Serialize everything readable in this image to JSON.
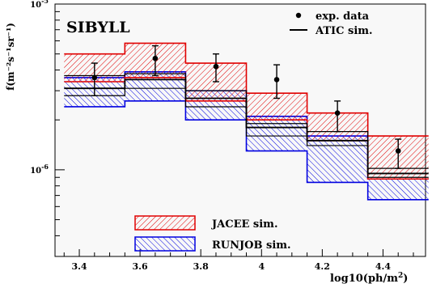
{
  "chart_data": {
    "type": "line",
    "title": "SIBYLL",
    "xlabel_base": "log10(ph/m",
    "xlabel_sup": "2",
    "xlabel_tail": ")",
    "ylabel": "f(m⁻²s⁻¹sr⁻¹)",
    "xlim": [
      3.32,
      4.54
    ],
    "ylim": [
      3e-07,
      1e-05
    ],
    "yscale": "log",
    "grid": false,
    "legend_placement": "top-right",
    "x_ticks": [
      {
        "value": 3.4,
        "label": "3.4"
      },
      {
        "value": 3.6,
        "label": "3.6"
      },
      {
        "value": 3.8,
        "label": "3.8"
      },
      {
        "value": 4.0,
        "label": "4"
      },
      {
        "value": 4.2,
        "label": "4.2"
      },
      {
        "value": 4.4,
        "label": "4.4"
      }
    ],
    "y_ticks": [
      {
        "value": 1e-05,
        "base": "10",
        "exp": "-5"
      },
      {
        "value": 1e-06,
        "base": "10",
        "exp": "-6"
      }
    ],
    "bin_edges": [
      3.35,
      3.55,
      3.75,
      3.95,
      4.15,
      4.35,
      4.55
    ],
    "series": [
      {
        "name": "exp. data",
        "kind": "points",
        "color": "#000000",
        "x": [
          3.45,
          3.65,
          3.85,
          4.05,
          4.25,
          4.45
        ],
        "y": [
          3.6e-06,
          4.7e-06,
          4.2e-06,
          3.5e-06,
          2.2e-06,
          1.3e-06
        ],
        "yerr_low": [
          2.8e-06,
          3.7e-06,
          3.4e-06,
          2.7e-06,
          1.7e-06,
          1.02e-06
        ],
        "yerr_high": [
          4.4e-06,
          5.6e-06,
          5e-06,
          4.3e-06,
          2.6e-06,
          1.53e-06
        ]
      },
      {
        "name": "ATIC sim.",
        "kind": "band",
        "color": "#000000",
        "low": [
          2.8e-06,
          3.1e-06,
          2.4e-06,
          1.6e-06,
          1.4e-06,
          9e-07
        ],
        "high": [
          3.7e-06,
          3.8e-06,
          3e-06,
          1.9e-06,
          1.7e-06,
          1.02e-06
        ],
        "mid": [
          3.1e-06,
          3.5e-06,
          2.7e-06,
          1.8e-06,
          1.5e-06,
          9.5e-07
        ]
      },
      {
        "name": "JACEE  sim.",
        "kind": "band",
        "color": "#e00000",
        "low": [
          3.4e-06,
          3.6e-06,
          2.6e-06,
          2e-06,
          1.5e-06,
          8.8e-07
        ],
        "high": [
          5e-06,
          5.8e-06,
          4.4e-06,
          2.9e-06,
          2.2e-06,
          1.6e-06
        ]
      },
      {
        "name": "RUNJOB sim.",
        "kind": "band",
        "color": "#0000e0",
        "low": [
          2.4e-06,
          2.6e-06,
          2e-06,
          1.3e-06,
          8.4e-07,
          6.6e-07
        ],
        "high": [
          3.6e-06,
          3.9e-06,
          3e-06,
          2.1e-06,
          1.6e-06,
          8.8e-07
        ]
      }
    ]
  }
}
